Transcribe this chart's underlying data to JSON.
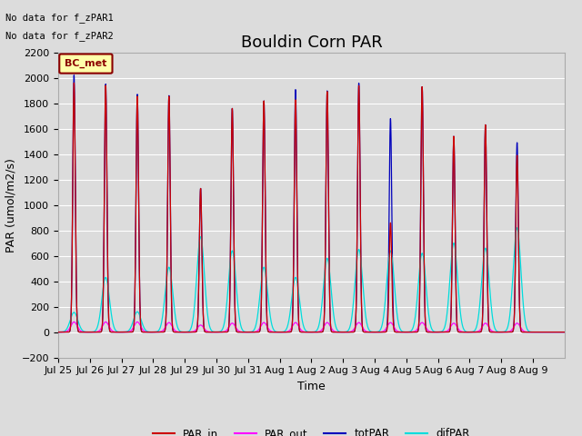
{
  "title": "Bouldin Corn PAR",
  "ylabel": "PAR (umol/m2/s)",
  "xlabel": "Time",
  "no_data_text": [
    "No data for f_zPAR1",
    "No data for f_zPAR2"
  ],
  "legend_label": "BC_met",
  "ylim": [
    -200,
    2200
  ],
  "yticks": [
    -200,
    0,
    200,
    400,
    600,
    800,
    1000,
    1200,
    1400,
    1600,
    1800,
    2000,
    2200
  ],
  "plot_bg": "#dcdcdc",
  "fig_bg": "#dcdcdc",
  "grid_color": "#ffffff",
  "colors": {
    "PAR_in": "#cc0000",
    "PAR_out": "#ff00ff",
    "totPAR": "#0000bb",
    "difPAR": "#00dddd"
  },
  "x_tick_labels": [
    "Jul 25",
    "Jul 26",
    "Jul 27",
    "Jul 28",
    "Jul 29",
    "Jul 30",
    "Jul 31",
    "Aug 1",
    "Aug 2",
    "Aug 3",
    "Aug 4",
    "Aug 5",
    "Aug 6",
    "Aug 7",
    "Aug 8",
    "Aug 9"
  ],
  "n_days": 16,
  "day_peaks_tot": [
    2020,
    1950,
    1870,
    1860,
    1130,
    1760,
    1820,
    1910,
    1900,
    1960,
    1680,
    1930,
    1540,
    1630,
    1490,
    0
  ],
  "day_peaks_in": [
    1960,
    1940,
    1855,
    1855,
    1130,
    1760,
    1820,
    1830,
    1895,
    1940,
    860,
    1930,
    1540,
    1630,
    1390,
    0
  ],
  "day_peaks_out": [
    80,
    80,
    80,
    75,
    55,
    70,
    75,
    75,
    75,
    75,
    75,
    75,
    70,
    70,
    70,
    0
  ],
  "day_peaks_dif": [
    155,
    430,
    160,
    510,
    750,
    640,
    510,
    430,
    580,
    650,
    640,
    620,
    700,
    660,
    820,
    0
  ],
  "peak_sigma": 0.04,
  "dif_sigma": 0.12,
  "out_sigma": 0.1,
  "title_fontsize": 13,
  "label_fontsize": 9,
  "tick_fontsize": 8
}
